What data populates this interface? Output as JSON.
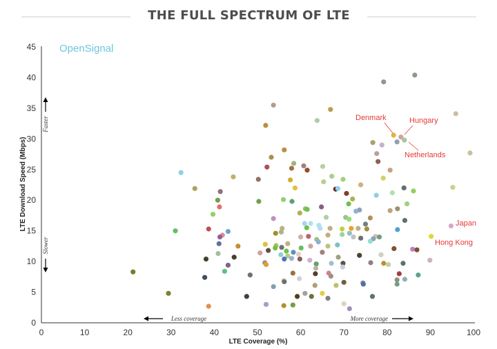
{
  "title": "THE FULL SPECTRUM OF LTE",
  "brand": "OpenSignal",
  "annotations": {
    "faster": "Faster",
    "slower": "Slower",
    "less_coverage": "Less coverage",
    "more_coverage": "More coverage"
  },
  "chart_data": {
    "type": "scatter",
    "xlabel": "LTE Coverage (%)",
    "ylabel": "LTE Download Speed (Mbps)",
    "xlim": [
      0,
      100
    ],
    "ylim": [
      0,
      45
    ],
    "xticks": [
      0,
      10,
      20,
      30,
      40,
      50,
      60,
      70,
      80,
      90,
      100
    ],
    "yticks": [
      0,
      5,
      10,
      15,
      20,
      25,
      30,
      35,
      40,
      45
    ],
    "grid": false,
    "labeled_points": [
      {
        "label": "Denmark",
        "x": 81.5,
        "y": 30.6,
        "color": "#e0b43c"
      },
      {
        "label": "Hungary",
        "x": 83.2,
        "y": 30.3,
        "color": "#d8a0a0"
      },
      {
        "label": "Netherlands",
        "x": 84.0,
        "y": 29.8,
        "color": "#a8c890"
      },
      {
        "label": "Japan",
        "x": 94.8,
        "y": 15.8,
        "color": "#d7a8c8"
      },
      {
        "label": "Hong Kong",
        "x": 90.2,
        "y": 14.1,
        "color": "#d9d93a"
      }
    ],
    "points": [
      {
        "x": 86.4,
        "y": 40.4,
        "color": "#8a9a88"
      },
      {
        "x": 79.2,
        "y": 39.3,
        "color": "#8a9a88"
      },
      {
        "x": 53.7,
        "y": 35.5,
        "color": "#b89a88"
      },
      {
        "x": 66.9,
        "y": 34.8,
        "color": "#b8a050"
      },
      {
        "x": 95.9,
        "y": 34.1,
        "color": "#c8c0a0"
      },
      {
        "x": 63.8,
        "y": 33.0,
        "color": "#a8d0a8"
      },
      {
        "x": 51.9,
        "y": 32.2,
        "color": "#b89040"
      },
      {
        "x": 82.3,
        "y": 29.5,
        "color": "#90a0b0"
      },
      {
        "x": 76.7,
        "y": 29.4,
        "color": "#a8a070"
      },
      {
        "x": 78.8,
        "y": 29.0,
        "color": "#c8b0c8"
      },
      {
        "x": 99.2,
        "y": 27.7,
        "color": "#c8c0a0"
      },
      {
        "x": 56.2,
        "y": 28.2,
        "color": "#b89040"
      },
      {
        "x": 77.6,
        "y": 27.6,
        "color": "#b8a0a0"
      },
      {
        "x": 53.2,
        "y": 27.0,
        "color": "#a89050"
      },
      {
        "x": 58.4,
        "y": 26.0,
        "color": "#a0b080"
      },
      {
        "x": 77.9,
        "y": 26.3,
        "color": "#906050"
      },
      {
        "x": 52.2,
        "y": 25.4,
        "color": "#b05050"
      },
      {
        "x": 60.7,
        "y": 25.6,
        "color": "#a08080"
      },
      {
        "x": 61.5,
        "y": 24.9,
        "color": "#905030"
      },
      {
        "x": 65.1,
        "y": 25.5,
        "color": "#b8d0a0"
      },
      {
        "x": 57.9,
        "y": 25.2,
        "color": "#a07040"
      },
      {
        "x": 80.7,
        "y": 24.9,
        "color": "#c8a080"
      },
      {
        "x": 32.3,
        "y": 24.5,
        "color": "#90d0e0"
      },
      {
        "x": 67.2,
        "y": 23.9,
        "color": "#a8d090"
      },
      {
        "x": 69.8,
        "y": 23.4,
        "color": "#a0d080"
      },
      {
        "x": 79.1,
        "y": 23.6,
        "color": "#d0d070"
      },
      {
        "x": 44.4,
        "y": 23.8,
        "color": "#c0b070"
      },
      {
        "x": 57.6,
        "y": 23.3,
        "color": "#d0b030"
      },
      {
        "x": 50.2,
        "y": 23.4,
        "color": "#907060"
      },
      {
        "x": 65.3,
        "y": 23.0,
        "color": "#b8d090"
      },
      {
        "x": 58.7,
        "y": 22.0,
        "color": "#e0c040"
      },
      {
        "x": 68.1,
        "y": 21.8,
        "color": "#603020"
      },
      {
        "x": 68.6,
        "y": 21.9,
        "color": "#90d0f0"
      },
      {
        "x": 35.5,
        "y": 21.9,
        "color": "#b0a060"
      },
      {
        "x": 95.2,
        "y": 22.1,
        "color": "#c8d090"
      },
      {
        "x": 73.9,
        "y": 22.5,
        "color": "#d0b080"
      },
      {
        "x": 83.9,
        "y": 22.0,
        "color": "#607070"
      },
      {
        "x": 41.4,
        "y": 21.4,
        "color": "#907080"
      },
      {
        "x": 70.6,
        "y": 21.1,
        "color": "#804030"
      },
      {
        "x": 81.2,
        "y": 21.2,
        "color": "#b0e0b0"
      },
      {
        "x": 86.1,
        "y": 21.5,
        "color": "#90d060"
      },
      {
        "x": 77.5,
        "y": 20.8,
        "color": "#90d0e0"
      },
      {
        "x": 56.0,
        "y": 20.1,
        "color": "#90d070"
      },
      {
        "x": 72.0,
        "y": 20.2,
        "color": "#b0b050"
      },
      {
        "x": 40.8,
        "y": 20.0,
        "color": "#70a050"
      },
      {
        "x": 50.3,
        "y": 19.8,
        "color": "#70a050"
      },
      {
        "x": 58.0,
        "y": 19.8,
        "color": "#60a070"
      },
      {
        "x": 84.6,
        "y": 19.4,
        "color": "#a0d080"
      },
      {
        "x": 71.1,
        "y": 19.4,
        "color": "#70c050"
      },
      {
        "x": 64.8,
        "y": 18.9,
        "color": "#806080"
      },
      {
        "x": 41.2,
        "y": 18.9,
        "color": "#e07070"
      },
      {
        "x": 61.1,
        "y": 18.6,
        "color": "#90c070"
      },
      {
        "x": 61.5,
        "y": 18.5,
        "color": "#70c050"
      },
      {
        "x": 73.6,
        "y": 18.4,
        "color": "#90a0b0"
      },
      {
        "x": 80.7,
        "y": 18.3,
        "color": "#c0a080"
      },
      {
        "x": 82.4,
        "y": 18.6,
        "color": "#a09070"
      },
      {
        "x": 72.8,
        "y": 18.2,
        "color": "#90b0d0"
      },
      {
        "x": 59.8,
        "y": 17.9,
        "color": "#b0b050"
      },
      {
        "x": 39.7,
        "y": 17.7,
        "color": "#90d070"
      },
      {
        "x": 70.4,
        "y": 17.2,
        "color": "#a0c090"
      },
      {
        "x": 65.9,
        "y": 17.2,
        "color": "#b0d0a0"
      },
      {
        "x": 53.7,
        "y": 17.0,
        "color": "#c090c0"
      },
      {
        "x": 76.1,
        "y": 17.1,
        "color": "#b09060"
      },
      {
        "x": 71.2,
        "y": 16.9,
        "color": "#90e070"
      },
      {
        "x": 84.1,
        "y": 16.7,
        "color": "#607070"
      },
      {
        "x": 75.0,
        "y": 16.1,
        "color": "#708080"
      },
      {
        "x": 60.9,
        "y": 16.2,
        "color": "#b0d0f0"
      },
      {
        "x": 62.3,
        "y": 16.2,
        "color": "#b0e0f0"
      },
      {
        "x": 64.2,
        "y": 15.9,
        "color": "#b0e0f0"
      },
      {
        "x": 61.4,
        "y": 15.5,
        "color": "#70c050"
      },
      {
        "x": 64.5,
        "y": 15.4,
        "color": "#b0e0f0"
      },
      {
        "x": 73.3,
        "y": 15.4,
        "color": "#c0b080"
      },
      {
        "x": 55.7,
        "y": 15.4,
        "color": "#c0b080"
      },
      {
        "x": 66.8,
        "y": 15.4,
        "color": "#c0b080"
      },
      {
        "x": 71.7,
        "y": 15.4,
        "color": "#f0a030"
      },
      {
        "x": 69.6,
        "y": 15.3,
        "color": "#c0d040"
      },
      {
        "x": 75.3,
        "y": 15.3,
        "color": "#a09040"
      },
      {
        "x": 38.7,
        "y": 15.3,
        "color": "#c05050"
      },
      {
        "x": 82.4,
        "y": 15.2,
        "color": "#50a0d0"
      },
      {
        "x": 31.0,
        "y": 15.0,
        "color": "#60c060"
      },
      {
        "x": 43.2,
        "y": 14.9,
        "color": "#70a0d0"
      },
      {
        "x": 55.5,
        "y": 14.8,
        "color": "#b0b090"
      },
      {
        "x": 71.3,
        "y": 14.6,
        "color": "#90c0c0"
      },
      {
        "x": 54.2,
        "y": 14.6,
        "color": "#a09030"
      },
      {
        "x": 69.6,
        "y": 14.4,
        "color": "#a0d0a0"
      },
      {
        "x": 41.9,
        "y": 14.3,
        "color": "#d090a0"
      },
      {
        "x": 66.3,
        "y": 14.3,
        "color": "#c0b080"
      },
      {
        "x": 77.3,
        "y": 14.1,
        "color": "#d0c0b0"
      },
      {
        "x": 61.8,
        "y": 14.1,
        "color": "#c06070"
      },
      {
        "x": 41.3,
        "y": 14.0,
        "color": "#906090"
      },
      {
        "x": 78.2,
        "y": 14.0,
        "color": "#70a080"
      },
      {
        "x": 60.0,
        "y": 14.0,
        "color": "#d0b0a0"
      },
      {
        "x": 72.2,
        "y": 14.0,
        "color": "#c0c0c0"
      },
      {
        "x": 73.9,
        "y": 13.8,
        "color": "#707070"
      },
      {
        "x": 76.8,
        "y": 13.7,
        "color": "#90a0c0"
      },
      {
        "x": 63.7,
        "y": 13.6,
        "color": "#a0c080"
      },
      {
        "x": 76.1,
        "y": 13.3,
        "color": "#90e0d0"
      },
      {
        "x": 64.1,
        "y": 13.2,
        "color": "#90b0d0"
      },
      {
        "x": 41.1,
        "y": 12.9,
        "color": "#6070a0"
      },
      {
        "x": 57.0,
        "y": 12.9,
        "color": "#c0b080"
      },
      {
        "x": 51.8,
        "y": 12.8,
        "color": "#e0c040"
      },
      {
        "x": 68.5,
        "y": 12.7,
        "color": "#80c0c0"
      },
      {
        "x": 54.3,
        "y": 12.6,
        "color": "#b0c050"
      },
      {
        "x": 45.5,
        "y": 12.5,
        "color": "#c09030"
      },
      {
        "x": 62.3,
        "y": 12.5,
        "color": "#d0a0a0"
      },
      {
        "x": 66.3,
        "y": 12.5,
        "color": "#c0c080"
      },
      {
        "x": 55.6,
        "y": 12.3,
        "color": "#707070"
      },
      {
        "x": 54.1,
        "y": 12.2,
        "color": "#70c050"
      },
      {
        "x": 60.1,
        "y": 12.2,
        "color": "#60c060"
      },
      {
        "x": 81.6,
        "y": 12.1,
        "color": "#805030"
      },
      {
        "x": 85.9,
        "y": 12.0,
        "color": "#c080c0"
      },
      {
        "x": 86.9,
        "y": 11.9,
        "color": "#805030"
      },
      {
        "x": 52.5,
        "y": 11.8,
        "color": "#605040"
      },
      {
        "x": 56.7,
        "y": 11.7,
        "color": "#70c050"
      },
      {
        "x": 65.0,
        "y": 11.5,
        "color": "#a08080"
      },
      {
        "x": 58.3,
        "y": 11.5,
        "color": "#6090c0"
      },
      {
        "x": 50.6,
        "y": 11.4,
        "color": "#d0a0a0"
      },
      {
        "x": 40.9,
        "y": 11.3,
        "color": "#a0c0a0"
      },
      {
        "x": 59.5,
        "y": 11.2,
        "color": "#e0d0c0"
      },
      {
        "x": 55.4,
        "y": 11.1,
        "color": "#90d0d0"
      },
      {
        "x": 78.6,
        "y": 11.1,
        "color": "#d0d0c0"
      },
      {
        "x": 73.6,
        "y": 11.0,
        "color": "#504030"
      },
      {
        "x": 57.0,
        "y": 10.9,
        "color": "#b0d080"
      },
      {
        "x": 44.6,
        "y": 10.7,
        "color": "#404030"
      },
      {
        "x": 68.7,
        "y": 10.7,
        "color": "#a0a080"
      },
      {
        "x": 57.9,
        "y": 10.5,
        "color": "#a0b0d0"
      },
      {
        "x": 59.8,
        "y": 10.4,
        "color": "#806060"
      },
      {
        "x": 38.1,
        "y": 10.4,
        "color": "#404030"
      },
      {
        "x": 56.2,
        "y": 10.4,
        "color": "#5070c0"
      },
      {
        "x": 62.1,
        "y": 10.2,
        "color": "#d0b0d0"
      },
      {
        "x": 89.9,
        "y": 10.2,
        "color": "#d0b0c0"
      },
      {
        "x": 51.7,
        "y": 9.8,
        "color": "#a09090"
      },
      {
        "x": 76.2,
        "y": 9.8,
        "color": "#908080"
      },
      {
        "x": 67.1,
        "y": 9.7,
        "color": "#a0c0d0"
      },
      {
        "x": 79.2,
        "y": 9.7,
        "color": "#c09030"
      },
      {
        "x": 69.8,
        "y": 9.7,
        "color": "#605040"
      },
      {
        "x": 83.7,
        "y": 9.7,
        "color": "#607070"
      },
      {
        "x": 63.6,
        "y": 9.6,
        "color": "#60a070"
      },
      {
        "x": 52.0,
        "y": 9.5,
        "color": "#e0a030"
      },
      {
        "x": 80.3,
        "y": 9.5,
        "color": "#c0d0a0"
      },
      {
        "x": 43.2,
        "y": 9.4,
        "color": "#806090"
      },
      {
        "x": 69.7,
        "y": 9.1,
        "color": "#c0d0e0"
      },
      {
        "x": 63.5,
        "y": 8.9,
        "color": "#c0b0a0"
      },
      {
        "x": 42.4,
        "y": 8.4,
        "color": "#60c080"
      },
      {
        "x": 21.2,
        "y": 8.3,
        "color": "#708030"
      },
      {
        "x": 66.5,
        "y": 8.1,
        "color": "#d08090"
      },
      {
        "x": 58.2,
        "y": 8.1,
        "color": "#a07040"
      },
      {
        "x": 82.8,
        "y": 8.0,
        "color": "#a04040"
      },
      {
        "x": 63.4,
        "y": 8.0,
        "color": "#504030"
      },
      {
        "x": 87.2,
        "y": 7.8,
        "color": "#60a090"
      },
      {
        "x": 48.3,
        "y": 7.8,
        "color": "#707070"
      },
      {
        "x": 67.0,
        "y": 7.6,
        "color": "#a09080"
      },
      {
        "x": 37.8,
        "y": 7.4,
        "color": "#405060"
      },
      {
        "x": 59.7,
        "y": 7.2,
        "color": "#d0d0d0"
      },
      {
        "x": 84.1,
        "y": 7.1,
        "color": "#90b0b0"
      },
      {
        "x": 82.3,
        "y": 7.0,
        "color": "#909080"
      },
      {
        "x": 56.1,
        "y": 6.9,
        "color": "#d0d0b0"
      },
      {
        "x": 56.2,
        "y": 6.7,
        "color": "#707070"
      },
      {
        "x": 70.0,
        "y": 6.6,
        "color": "#706040"
      },
      {
        "x": 74.4,
        "y": 6.5,
        "color": "#8090a0"
      },
      {
        "x": 74.5,
        "y": 6.3,
        "color": "#5070a0"
      },
      {
        "x": 82.3,
        "y": 6.3,
        "color": "#70a080"
      },
      {
        "x": 68.2,
        "y": 6.1,
        "color": "#c0c070"
      },
      {
        "x": 63.3,
        "y": 6.1,
        "color": "#b0a070"
      },
      {
        "x": 53.7,
        "y": 5.9,
        "color": "#80a0b0"
      },
      {
        "x": 65.0,
        "y": 4.8,
        "color": "#e0d040"
      },
      {
        "x": 61.0,
        "y": 4.8,
        "color": "#a0a0a0"
      },
      {
        "x": 29.4,
        "y": 4.8,
        "color": "#808030"
      },
      {
        "x": 76.6,
        "y": 4.3,
        "color": "#607070"
      },
      {
        "x": 47.5,
        "y": 4.3,
        "color": "#404040"
      },
      {
        "x": 59.2,
        "y": 4.3,
        "color": "#504020"
      },
      {
        "x": 62.5,
        "y": 4.3,
        "color": "#707040"
      },
      {
        "x": 66.3,
        "y": 4.0,
        "color": "#808080"
      },
      {
        "x": 70.0,
        "y": 3.1,
        "color": "#e0d0c0"
      },
      {
        "x": 52.0,
        "y": 3.0,
        "color": "#a0a0d0"
      },
      {
        "x": 56.1,
        "y": 2.8,
        "color": "#b09030"
      },
      {
        "x": 58.2,
        "y": 2.9,
        "color": "#70a040"
      },
      {
        "x": 38.7,
        "y": 2.7,
        "color": "#e09050"
      },
      {
        "x": 71.3,
        "y": 2.3,
        "color": "#a090c0"
      }
    ]
  }
}
